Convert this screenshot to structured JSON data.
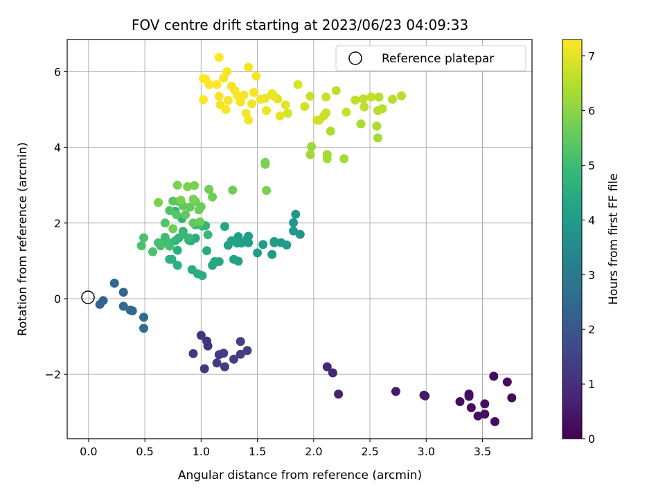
{
  "chart_data": {
    "type": "scatter",
    "title": "FOV centre drift starting at 2023/06/23 04:09:33",
    "xlabel": "Angular distance from reference (arcmin)",
    "ylabel": "Rotation from reference (arcmin)",
    "xlim": [
      -0.19,
      3.94
    ],
    "ylim": [
      -3.7,
      6.85
    ],
    "xticks": [
      0.0,
      0.5,
      1.0,
      1.5,
      2.0,
      2.5,
      3.0,
      3.5
    ],
    "xtick_labels": [
      "0.0",
      "0.5",
      "1.0",
      "1.5",
      "2.0",
      "2.5",
      "3.0",
      "3.5"
    ],
    "yticks": [
      -2,
      0,
      2,
      4,
      6
    ],
    "ytick_labels": [
      "−2",
      "0",
      "2",
      "4",
      "6"
    ],
    "grid": true,
    "legend": {
      "placement": "top-right",
      "entries": [
        "Reference platepar"
      ]
    },
    "reference_point": {
      "x": 0.0,
      "y": 0.0,
      "marker": "open-circle",
      "color": "#000000"
    },
    "colorbar": {
      "label": "Hours from first FF file",
      "range": [
        0,
        7.3
      ],
      "ticks": [
        0,
        1,
        2,
        3,
        4,
        5,
        6,
        7
      ],
      "tick_labels": [
        "0",
        "1",
        "2",
        "3",
        "4",
        "5",
        "6",
        "7"
      ],
      "colormap": "viridis",
      "colors": [
        "#440154",
        "#482878",
        "#3e4989",
        "#31688e",
        "#26828e",
        "#1f9e89",
        "#35b779",
        "#6ece58",
        "#b5de2b",
        "#fde725"
      ]
    },
    "series": [
      {
        "points": [
          [
            3.6,
            -2.05,
            0.2
          ],
          [
            3.72,
            -2.2,
            0.2
          ],
          [
            3.76,
            -2.62,
            0.2
          ],
          [
            3.38,
            -2.52,
            0.25
          ],
          [
            3.38,
            -2.58,
            0.25
          ],
          [
            3.3,
            -2.72,
            0.3
          ],
          [
            3.4,
            -2.88,
            0.3
          ],
          [
            3.46,
            -3.1,
            0.3
          ],
          [
            3.52,
            -3.05,
            0.3
          ],
          [
            3.52,
            -2.78,
            0.3
          ],
          [
            3.61,
            -3.25,
            0.25
          ],
          [
            2.98,
            -2.55,
            0.5
          ],
          [
            2.99,
            -2.57,
            0.5
          ],
          [
            2.73,
            -2.45,
            0.5
          ],
          [
            2.12,
            -1.8,
            0.8
          ],
          [
            2.17,
            -1.96,
            0.8
          ],
          [
            2.22,
            -2.52,
            0.7
          ],
          [
            1.0,
            -0.97,
            1.1
          ],
          [
            1.05,
            -1.12,
            1.1
          ],
          [
            1.06,
            -1.25,
            1.1
          ],
          [
            0.93,
            -1.45,
            1.2
          ],
          [
            1.03,
            -1.85,
            1.2
          ],
          [
            1.14,
            -1.7,
            1.3
          ],
          [
            1.16,
            -1.48,
            1.3
          ],
          [
            1.2,
            -1.44,
            1.3
          ],
          [
            1.21,
            -1.8,
            1.3
          ],
          [
            1.29,
            -1.6,
            1.4
          ],
          [
            1.35,
            -1.47,
            1.4
          ],
          [
            1.35,
            -1.13,
            1.4
          ],
          [
            1.41,
            -1.37,
            1.4
          ],
          [
            0.1,
            -0.15,
            2.3
          ],
          [
            0.13,
            -0.05,
            2.3
          ],
          [
            0.23,
            0.41,
            2.4
          ],
          [
            0.31,
            0.17,
            2.4
          ],
          [
            0.31,
            -0.2,
            2.5
          ],
          [
            0.37,
            -0.3,
            2.5
          ],
          [
            0.39,
            -0.32,
            2.5
          ],
          [
            0.49,
            -0.49,
            2.6
          ],
          [
            0.49,
            -0.78,
            2.6
          ],
          [
            1.88,
            1.7,
            3.8
          ],
          [
            1.82,
            1.79,
            3.9
          ],
          [
            1.84,
            2.23,
            3.9
          ],
          [
            1.82,
            2.01,
            3.9
          ],
          [
            1.71,
            1.48,
            4.0
          ],
          [
            1.76,
            1.42,
            4.0
          ],
          [
            1.65,
            1.51,
            4.0
          ],
          [
            1.65,
            1.48,
            4.0
          ],
          [
            1.63,
            1.17,
            4.0
          ],
          [
            1.55,
            1.43,
            4.0
          ],
          [
            1.5,
            1.21,
            4.1
          ],
          [
            1.42,
            1.48,
            4.1
          ],
          [
            1.42,
            1.65,
            4.1
          ],
          [
            1.41,
            1.58,
            4.1
          ],
          [
            1.36,
            1.47,
            4.1
          ],
          [
            1.33,
            1.64,
            4.1
          ],
          [
            1.32,
            1.47,
            4.2
          ],
          [
            1.33,
            0.99,
            4.2
          ],
          [
            1.29,
            1.04,
            4.2
          ],
          [
            1.27,
            1.53,
            4.2
          ],
          [
            1.24,
            1.41,
            4.2
          ],
          [
            1.21,
            1.91,
            4.3
          ],
          [
            1.16,
            0.98,
            4.3
          ],
          [
            1.1,
            0.88,
            4.3
          ],
          [
            1.12,
            0.98,
            4.3
          ],
          [
            1.05,
            1.27,
            4.4
          ],
          [
            1.01,
            1.94,
            4.4
          ],
          [
            0.95,
            1.6,
            4.5
          ],
          [
            0.91,
            1.53,
            4.5
          ],
          [
            0.89,
            1.55,
            4.5
          ],
          [
            0.92,
            0.77,
            4.5
          ],
          [
            0.97,
            0.66,
            4.5
          ],
          [
            1.01,
            0.61,
            4.5
          ],
          [
            0.79,
            1.28,
            4.6
          ],
          [
            0.79,
            0.88,
            4.6
          ],
          [
            0.74,
            1.04,
            4.6
          ],
          [
            0.72,
            1.04,
            4.6
          ],
          [
            0.8,
            1.6,
            4.7
          ],
          [
            0.84,
            1.78,
            4.8
          ],
          [
            0.95,
            1.95,
            4.8
          ],
          [
            1.01,
            1.92,
            4.9
          ],
          [
            1.04,
            1.93,
            4.9
          ],
          [
            1.06,
            1.69,
            4.9
          ],
          [
            0.89,
            1.61,
            4.9
          ],
          [
            0.84,
            1.7,
            4.9
          ],
          [
            0.83,
            2.12,
            4.8
          ],
          [
            0.77,
            2.31,
            4.7
          ],
          [
            0.77,
            1.53,
            4.9
          ],
          [
            0.68,
            1.62,
            5.0
          ],
          [
            0.7,
            1.5,
            5.0
          ],
          [
            0.72,
            1.39,
            5.1
          ],
          [
            0.62,
            1.48,
            5.1
          ],
          [
            0.64,
            1.4,
            5.1
          ],
          [
            0.57,
            1.24,
            5.2
          ],
          [
            0.47,
            1.4,
            5.2
          ],
          [
            0.49,
            1.61,
            5.2
          ],
          [
            0.68,
            2.0,
            5.3
          ],
          [
            0.72,
            2.33,
            5.3
          ],
          [
            0.75,
            2.58,
            5.4
          ],
          [
            0.8,
            2.57,
            5.4
          ],
          [
            0.78,
            2.22,
            5.4
          ],
          [
            0.84,
            2.45,
            5.5
          ],
          [
            0.86,
            2.22,
            5.5
          ],
          [
            0.9,
            2.42,
            5.5
          ],
          [
            0.93,
            2.0,
            5.5
          ],
          [
            0.98,
            2.35,
            5.6
          ],
          [
            1.0,
            2.43,
            5.6
          ],
          [
            1.07,
            2.89,
            5.7
          ],
          [
            1.1,
            2.69,
            5.7
          ],
          [
            0.95,
            2.57,
            5.7
          ],
          [
            0.93,
            2.63,
            5.8
          ],
          [
            0.88,
            2.96,
            5.8
          ],
          [
            0.94,
            2.99,
            5.8
          ],
          [
            0.79,
            3.0,
            5.8
          ],
          [
            0.62,
            2.54,
            5.8
          ],
          [
            0.82,
            2.6,
            5.8
          ],
          [
            0.75,
            1.85,
            5.7
          ],
          [
            0.99,
            2.03,
            5.6
          ],
          [
            1.28,
            2.87,
            5.7
          ],
          [
            1.57,
            3.6,
            5.8
          ],
          [
            1.57,
            3.55,
            5.8
          ],
          [
            1.58,
            2.86,
            5.8
          ],
          [
            1.98,
            4.02,
            6.2
          ],
          [
            1.97,
            3.81,
            6.3
          ],
          [
            2.12,
            3.81,
            6.3
          ],
          [
            2.12,
            3.7,
            6.3
          ],
          [
            2.27,
            3.7,
            6.3
          ],
          [
            2.15,
            4.43,
            6.4
          ],
          [
            2.42,
            4.62,
            6.4
          ],
          [
            2.57,
            4.25,
            6.3
          ],
          [
            2.56,
            4.56,
            6.4
          ],
          [
            2.57,
            4.97,
            6.5
          ],
          [
            2.61,
            5.02,
            6.5
          ],
          [
            2.7,
            5.27,
            6.5
          ],
          [
            2.78,
            5.36,
            6.5
          ],
          [
            2.58,
            5.33,
            6.5
          ],
          [
            2.51,
            5.33,
            6.6
          ],
          [
            2.44,
            5.28,
            6.6
          ],
          [
            2.45,
            5.07,
            6.6
          ],
          [
            2.37,
            5.25,
            6.6
          ],
          [
            2.29,
            4.93,
            6.7
          ],
          [
            2.2,
            5.5,
            6.6
          ],
          [
            2.11,
            4.91,
            6.7
          ],
          [
            2.11,
            5.33,
            6.7
          ],
          [
            2.09,
            4.83,
            6.7
          ],
          [
            2.05,
            4.72,
            6.7
          ],
          [
            2.03,
            4.72,
            6.8
          ],
          [
            1.97,
            5.35,
            6.7
          ],
          [
            1.92,
            5.08,
            6.8
          ],
          [
            1.86,
            5.66,
            6.9
          ],
          [
            1.77,
            4.9,
            6.9
          ],
          [
            1.75,
            5.12,
            7.0
          ],
          [
            1.7,
            4.83,
            7.0
          ],
          [
            1.68,
            5.28,
            7.0
          ],
          [
            1.65,
            5.35,
            7.1
          ],
          [
            1.63,
            5.42,
            7.1
          ],
          [
            1.58,
            4.97,
            7.1
          ],
          [
            1.57,
            5.3,
            7.1
          ],
          [
            1.53,
            5.27,
            7.2
          ],
          [
            1.49,
            5.88,
            7.2
          ],
          [
            1.47,
            5.45,
            7.2
          ],
          [
            1.45,
            5.15,
            7.2
          ],
          [
            1.42,
            4.72,
            7.2
          ],
          [
            1.42,
            6.12,
            7.2
          ],
          [
            1.4,
            4.9,
            7.2
          ],
          [
            1.38,
            5.38,
            7.2
          ],
          [
            1.35,
            5.2,
            7.2
          ],
          [
            1.32,
            5.37,
            7.3
          ],
          [
            1.3,
            5.5,
            7.2
          ],
          [
            1.27,
            5.62,
            7.2
          ],
          [
            1.24,
            5.24,
            7.2
          ],
          [
            1.22,
            5.0,
            7.2
          ],
          [
            1.23,
            6.0,
            7.2
          ],
          [
            1.2,
            5.83,
            7.2
          ],
          [
            1.17,
            5.12,
            7.2
          ],
          [
            1.16,
            5.35,
            7.2
          ],
          [
            1.16,
            6.38,
            7.3
          ],
          [
            1.14,
            5.66,
            7.3
          ],
          [
            1.07,
            5.66,
            7.3
          ],
          [
            1.04,
            5.8,
            7.3
          ],
          [
            1.02,
            5.82,
            7.3
          ],
          [
            1.02,
            5.26,
            7.3
          ]
        ]
      }
    ]
  }
}
